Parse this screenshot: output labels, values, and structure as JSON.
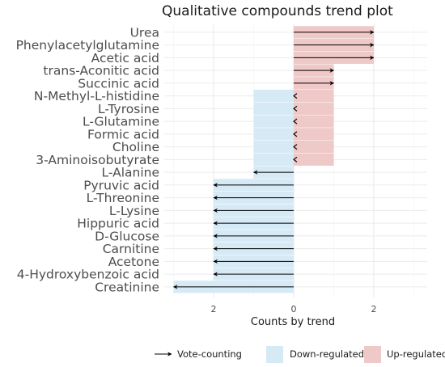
{
  "chart_data": {
    "type": "bar",
    "title": "Qualitative compounds trend plot",
    "xlabel": "Counts by trend",
    "ylabel": "",
    "xlim": [
      -3,
      3
    ],
    "x_tick_values": [
      -2,
      0,
      2
    ],
    "x_tick_labels": [
      "2",
      "0",
      "2"
    ],
    "grid": true,
    "legend_position": "bottom",
    "colors": {
      "down": "#d6eaf6",
      "up": "#efc8c8",
      "arrow": "#000000",
      "grid": "#ebebeb"
    },
    "categories": [
      "Urea",
      "Phenylacetylglutamine",
      "Acetic acid",
      "trans-Aconitic acid",
      "Succinic acid",
      "N-Methyl-L-histidine",
      "L-Tyrosine",
      "L-Glutamine",
      "Formic acid",
      "Choline",
      "3-Aminoisobutyrate",
      "L-Alanine",
      "Pyruvic acid",
      "L-Threonine",
      "L-Lysine",
      "Hippuric acid",
      "D-Glucose",
      "Carnitine",
      "Acetone",
      "4-Hydroxybenzoic acid",
      "Creatinine"
    ],
    "series": [
      {
        "name": "Down-regulated",
        "values": [
          0,
          0,
          0,
          0,
          0,
          1,
          1,
          1,
          1,
          1,
          1,
          1,
          2,
          2,
          2,
          2,
          2,
          2,
          2,
          2,
          3
        ]
      },
      {
        "name": "Up-regulated",
        "values": [
          2,
          2,
          2,
          1,
          1,
          1,
          1,
          1,
          1,
          1,
          1,
          0,
          0,
          0,
          0,
          0,
          0,
          0,
          0,
          0,
          0
        ]
      },
      {
        "name": "Vote-counting",
        "values": [
          2,
          2,
          2,
          1,
          1,
          0,
          0,
          0,
          0,
          0,
          0,
          -1,
          -2,
          -2,
          -2,
          -2,
          -2,
          -2,
          -2,
          -2,
          -3
        ]
      }
    ],
    "legend": [
      {
        "label": "Vote-counting",
        "kind": "arrow"
      },
      {
        "label": "Down-regulated",
        "kind": "fill",
        "color": "#d6eaf6"
      },
      {
        "label": "Up-regulated",
        "kind": "fill",
        "color": "#efc8c8"
      }
    ]
  }
}
